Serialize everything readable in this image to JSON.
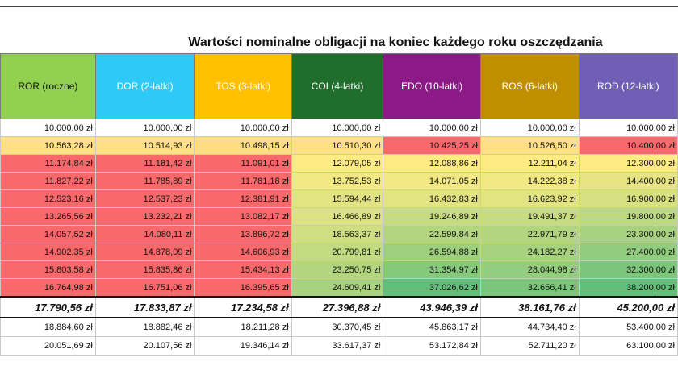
{
  "title": "Wartości nominalne obligacji na koniec każdego roku oszczędzania",
  "columns": [
    {
      "label": "ROR (roczne)",
      "bg": "#92d050",
      "fg": "#111111"
    },
    {
      "label": "DOR (2-latki)",
      "bg": "#2ec9f5",
      "fg": "#ffffff"
    },
    {
      "label": "TOS (3-latki)",
      "bg": "#ffc000",
      "fg": "#ffffff"
    },
    {
      "label": "COI (4-latki)",
      "bg": "#1f6e2c",
      "fg": "#ffffff"
    },
    {
      "label": "EDO (10-latki)",
      "bg": "#8b1a86",
      "fg": "#ffffff"
    },
    {
      "label": "ROS (6-latki)",
      "bg": "#bf8f00",
      "fg": "#ffffff"
    },
    {
      "label": "ROD (12-latki)",
      "bg": "#6f5fb5",
      "fg": "#ffffff"
    }
  ],
  "rows": [
    {
      "values": [
        "10.000,00 zł",
        "10.000,00 zł",
        "10.000,00 zł",
        "10.000,00 zł",
        "10.000,00 zł",
        "10.000,00 zł",
        "10.000,00 zł"
      ]
    },
    {
      "values": [
        "10.563,28 zł",
        "10.514,93 zł",
        "10.498,15 zł",
        "10.510,30 zł",
        "10.425,25 zł",
        "10.526,50 zł",
        "10.400,00 zł"
      ]
    },
    {
      "values": [
        "11.174,84 zł",
        "11.181,42 zł",
        "11.091,01 zł",
        "12.079,05 zł",
        "12.088,86 zł",
        "12.211,04 zł",
        "12.300,00 zł"
      ]
    },
    {
      "values": [
        "11.827,22 zł",
        "11.785,89 zł",
        "11.781,18 zł",
        "13.752,53 zł",
        "14.071,05 zł",
        "14.222,38 zł",
        "14.400,00 zł"
      ]
    },
    {
      "values": [
        "12.523,16 zł",
        "12.537,23 zł",
        "12.381,91 zł",
        "15.594,44 zł",
        "16.432,83 zł",
        "16.623,92 zł",
        "16.900,00 zł"
      ]
    },
    {
      "values": [
        "13.265,56 zł",
        "13.232,21 zł",
        "13.082,17 zł",
        "16.466,89 zł",
        "19.246,89 zł",
        "19.491,37 zł",
        "19.800,00 zł"
      ]
    },
    {
      "values": [
        "14.057,52 zł",
        "14.080,11 zł",
        "13.896,72 zł",
        "18.563,37 zł",
        "22.599,84 zł",
        "22.971,79 zł",
        "23.300,00 zł"
      ]
    },
    {
      "values": [
        "14.902,35 zł",
        "14.878,09 zł",
        "14.606,93 zł",
        "20.799,81 zł",
        "26.594,88 zł",
        "24.182,27 zł",
        "27.400,00 zł"
      ]
    },
    {
      "values": [
        "15.803,58 zł",
        "15.835,86 zł",
        "15.434,13 zł",
        "23.250,75 zł",
        "31.354,97 zł",
        "28.044,98 zł",
        "32.300,00 zł"
      ]
    },
    {
      "values": [
        "16.764,98 zł",
        "16.751,06 zł",
        "16.395,65 zł",
        "24.609,41 zł",
        "37.026,62 zł",
        "32.656,41 zł",
        "38.200,00 zł"
      ]
    }
  ],
  "bold_row": {
    "values": [
      "17.790,56 zł",
      "17.833,87 zł",
      "17.234,58 zł",
      "27.396,88 zł",
      "43.946,39 zł",
      "38.161,76 zł",
      "45.200,00 zł"
    ]
  },
  "extra_rows": [
    {
      "values": [
        "18.884,60 zł",
        "18.882,46 zł",
        "18.211,28 zł",
        "30.370,45 zł",
        "45.863,17 zł",
        "44.734,40 zł",
        "53.400,00 zł"
      ]
    },
    {
      "values": [
        "20.051,69 zł",
        "20.107,56 zł",
        "19.346,14 zł",
        "33.617,37 zł",
        "53.172,84 zł",
        "52.711,20 zł",
        "63.100,00 zł"
      ]
    }
  ],
  "cell_colors": [
    [
      "#ffffff",
      "#ffffff",
      "#ffffff",
      "#ffffff",
      "#ffffff",
      "#ffffff",
      "#ffffff"
    ],
    [
      "#ffe084",
      "#ffe084",
      "#fddc82",
      "#ffe084",
      "#f8696b",
      "#ffe084",
      "#f8696b"
    ],
    [
      "#f8696b",
      "#f8696b",
      "#f8696b",
      "#ffeb84",
      "#ffeb84",
      "#ffeb84",
      "#ffeb84"
    ],
    [
      "#f8696b",
      "#f8696b",
      "#f8696b",
      "#f2e884",
      "#f2e884",
      "#f2e884",
      "#e6e483"
    ],
    [
      "#f8696b",
      "#f8696b",
      "#f8696b",
      "#e2e383",
      "#e2e383",
      "#e2e383",
      "#d8e082"
    ],
    [
      "#f8696b",
      "#f8696b",
      "#f8696b",
      "#dde282",
      "#c7db81",
      "#c7db81",
      "#bcd881"
    ],
    [
      "#f8696b",
      "#f8696b",
      "#f8696b",
      "#d0de82",
      "#b3d57f",
      "#b3d57f",
      "#a8d27f"
    ],
    [
      "#f8696b",
      "#f8696b",
      "#f8696b",
      "#c2da80",
      "#9dcf7e",
      "#a8d27f",
      "#92cc7e"
    ],
    [
      "#f8696b",
      "#f8696b",
      "#f8696b",
      "#b3d57f",
      "#86c97c",
      "#94cd7e",
      "#7cc67c"
    ],
    [
      "#f8696b",
      "#f8696b",
      "#f8696b",
      "#a8d27f",
      "#63be7b",
      "#7cc67c",
      "#63be7b"
    ]
  ]
}
